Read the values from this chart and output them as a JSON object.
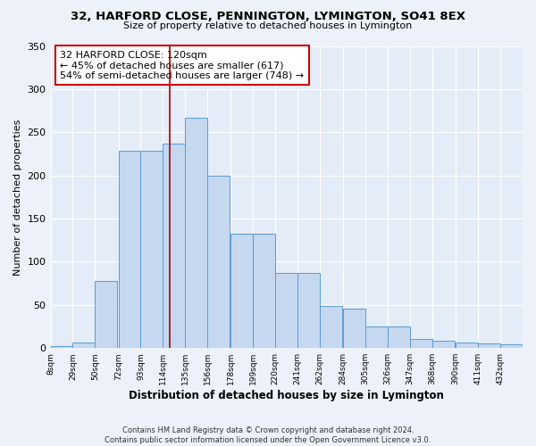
{
  "title1": "32, HARFORD CLOSE, PENNINGTON, LYMINGTON, SO41 8EX",
  "title2": "Size of property relative to detached houses in Lymington",
  "xlabel": "Distribution of detached houses by size in Lymington",
  "ylabel": "Number of detached properties",
  "bar_labels": [
    "8sqm",
    "29sqm",
    "50sqm",
    "72sqm",
    "93sqm",
    "114sqm",
    "135sqm",
    "156sqm",
    "178sqm",
    "199sqm",
    "220sqm",
    "241sqm",
    "262sqm",
    "284sqm",
    "305sqm",
    "326sqm",
    "347sqm",
    "368sqm",
    "390sqm",
    "411sqm",
    "432sqm"
  ],
  "bin_starts": [
    8,
    29,
    50,
    72,
    93,
    114,
    135,
    156,
    178,
    199,
    220,
    241,
    262,
    284,
    305,
    326,
    347,
    368,
    390,
    411,
    432
  ],
  "bar_heights": [
    2,
    6,
    78,
    229,
    229,
    237,
    267,
    200,
    132,
    132,
    87,
    87,
    49,
    46,
    25,
    25,
    11,
    8,
    6,
    5,
    4
  ],
  "bin_width": 21,
  "bar_color": "#c5d8f0",
  "bar_edge_color": "#5b9bd5",
  "vline_x": 120,
  "vline_color": "#aa0000",
  "annotation_title": "32 HARFORD CLOSE: 120sqm",
  "annotation_line1": "← 45% of detached houses are smaller (617)",
  "annotation_line2": "54% of semi-detached houses are larger (748) →",
  "annotation_box_facecolor": "#ffffff",
  "annotation_box_edgecolor": "#cc0000",
  "ylim": [
    0,
    350
  ],
  "xlim_min": 8,
  "xlim_max": 453,
  "fig_facecolor": "#edf2fa",
  "ax_facecolor": "#e4ecf7",
  "grid_color": "#ffffff",
  "footer1": "Contains HM Land Registry data © Crown copyright and database right 2024.",
  "footer2": "Contains public sector information licensed under the Open Government Licence v3.0."
}
